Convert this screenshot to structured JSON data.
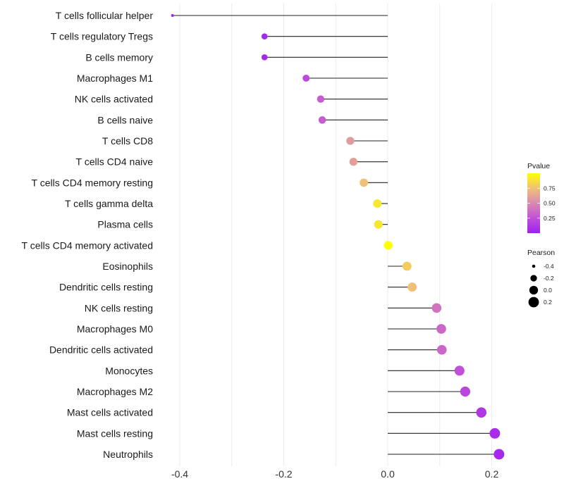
{
  "chart_data": {
    "type": "lollipop",
    "title": "",
    "xlabel": "",
    "ylabel": "",
    "xlim": [
      -0.43,
      0.24
    ],
    "x_ticks": [
      -0.4,
      -0.2,
      0.0,
      0.2
    ],
    "x_tick_labels": [
      "-0.4",
      "-0.2",
      "0.0",
      "0.2"
    ],
    "grid": true,
    "categories": [
      "T cells follicular helper",
      "T cells regulatory  Tregs",
      "B cells memory",
      "Macrophages M1",
      "NK cells activated",
      "B cells naive",
      "T cells CD8",
      "T cells CD4 naive",
      "T cells CD4 memory resting",
      "T cells gamma delta",
      "Plasma cells",
      "T cells CD4 memory activated",
      "Eosinophils",
      "Dendritic cells resting",
      "NK cells resting",
      "Macrophages M0",
      "Dendritic cells activated",
      "Monocytes",
      "Macrophages M2",
      "Mast cells activated",
      "Mast cells resting",
      "Neutrophils"
    ],
    "pearson": [
      -0.414,
      -0.237,
      -0.237,
      -0.157,
      -0.129,
      -0.126,
      -0.072,
      -0.066,
      -0.046,
      -0.02,
      -0.018,
      0.001,
      0.037,
      0.047,
      0.094,
      0.103,
      0.104,
      0.138,
      0.149,
      0.18,
      0.206,
      0.214
    ],
    "pvalue": [
      0.01,
      0.04,
      0.04,
      0.22,
      0.3,
      0.3,
      0.58,
      0.6,
      0.75,
      0.9,
      0.9,
      1.0,
      0.8,
      0.75,
      0.4,
      0.35,
      0.35,
      0.25,
      0.2,
      0.12,
      0.06,
      0.04
    ],
    "legend": {
      "color": {
        "title": "Pvalue",
        "range": [
          0,
          1
        ],
        "ticks": [
          0.25,
          0.5,
          0.75
        ],
        "tick_labels": [
          "0.25",
          "0.50",
          "0.75"
        ],
        "low": "#A020F0",
        "mid": "#D98AB0",
        "high": "#FFFF00"
      },
      "size": {
        "title": "Pearson",
        "values": [
          -0.4,
          -0.2,
          0.0,
          0.2
        ],
        "labels": [
          "-0.4",
          "-0.2",
          "0.0",
          "0.2"
        ]
      },
      "placement": "right"
    }
  }
}
